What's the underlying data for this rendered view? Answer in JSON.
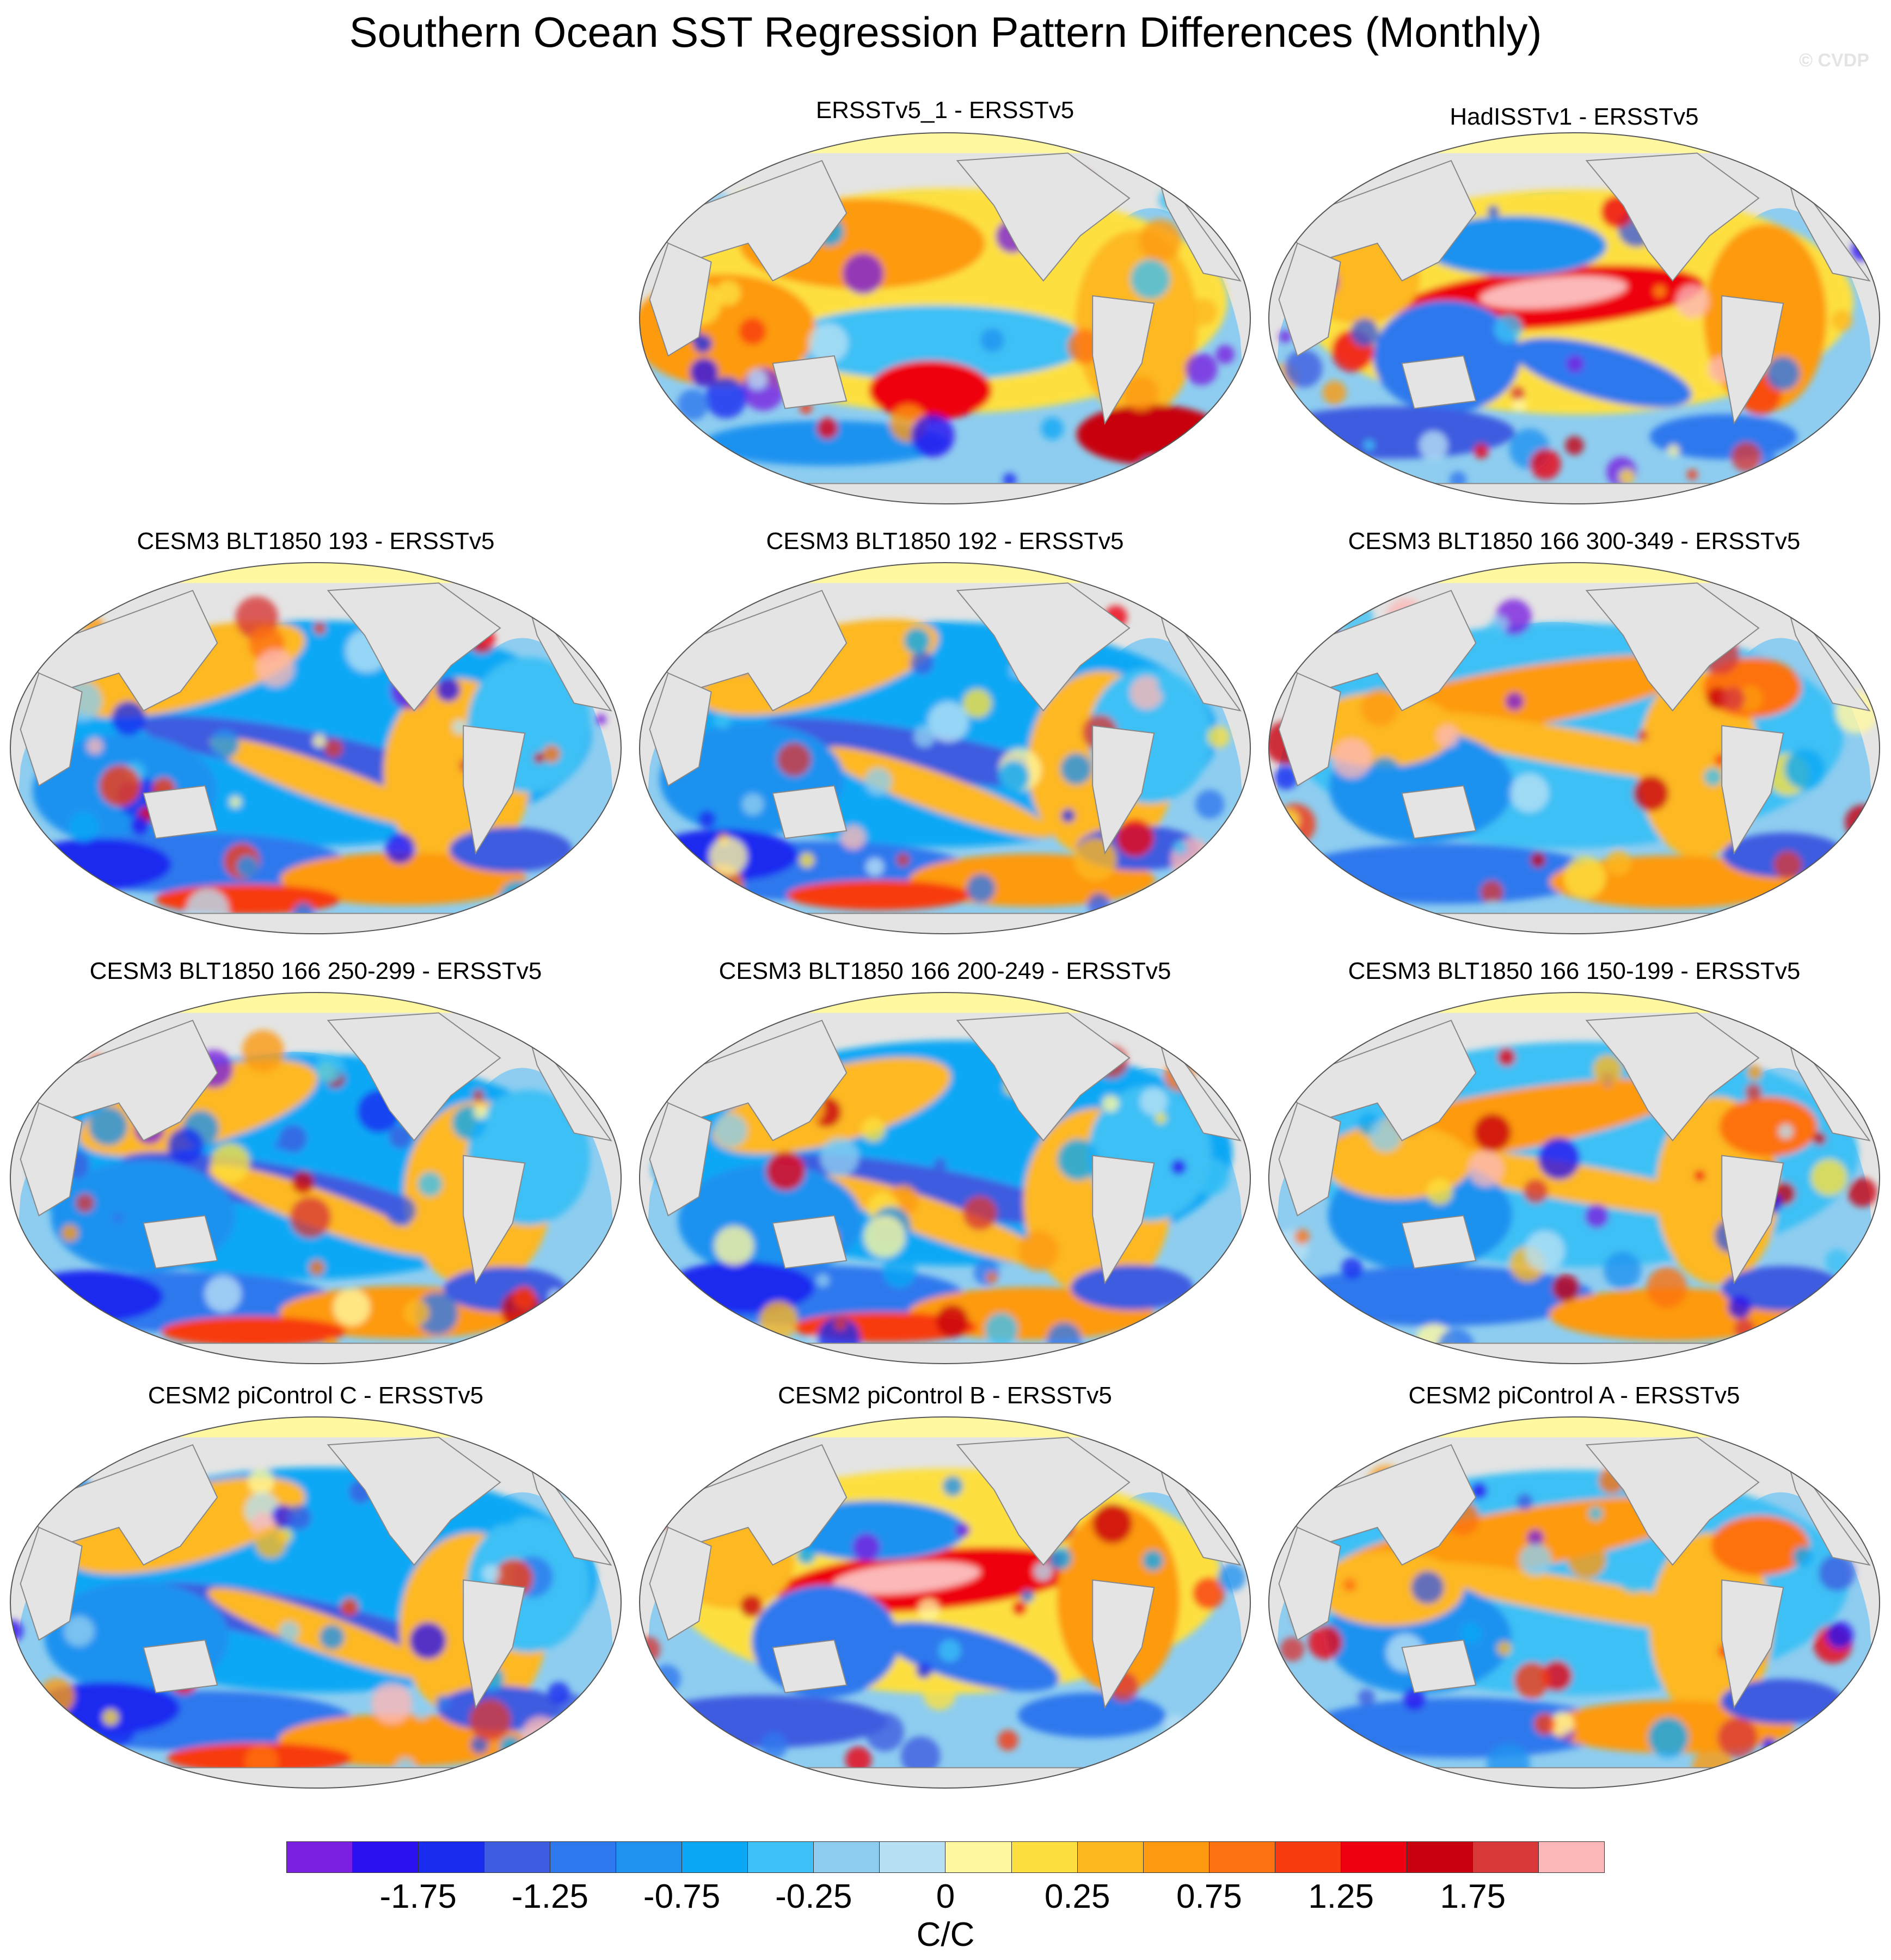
{
  "title": "Southern Ocean SST Regression Pattern Differences (Monthly)",
  "watermark": "© CVDP",
  "panels": [
    {
      "title": "ERSSTv5_1 - ERSSTv5",
      "pattern": "warm"
    },
    {
      "title": "HadISSTv1 - ERSSTv5",
      "pattern": "warm_tropics"
    },
    {
      "title": "CESM3 BLT1850 193 - ERSSTv5",
      "pattern": "cool"
    },
    {
      "title": "CESM3 BLT1850 192 - ERSSTv5",
      "pattern": "cool"
    },
    {
      "title": "CESM3 BLT1850 166 300-349 - ERSSTv5",
      "pattern": "mixed"
    },
    {
      "title": "CESM3 BLT1850 166 250-299 - ERSSTv5",
      "pattern": "cool"
    },
    {
      "title": "CESM3 BLT1850 166 200-249 - ERSSTv5",
      "pattern": "cool"
    },
    {
      "title": "CESM3 BLT1850 166 150-199 - ERSSTv5",
      "pattern": "mixed"
    },
    {
      "title": "CESM2 piControl C - ERSSTv5",
      "pattern": "cool"
    },
    {
      "title": "CESM2 piControl B - ERSSTv5",
      "pattern": "warm_tropics"
    },
    {
      "title": "CESM2 piControl A - ERSSTv5",
      "pattern": "mixed"
    }
  ],
  "colorbar": {
    "colors": [
      "#7b1fe0",
      "#2a10f0",
      "#1a2cf0",
      "#3d5ce0",
      "#2e78ee",
      "#1f92f0",
      "#0aa8f5",
      "#3cc0f5",
      "#8ecdf0",
      "#b8e0f5",
      "#fff8a0",
      "#fde040",
      "#fdb820",
      "#fd9a10",
      "#fd7210",
      "#f83a10",
      "#ee0010",
      "#c80010",
      "#d83838",
      "#fcb8b8"
    ],
    "labels": [
      "-1.75",
      "-1.25",
      "-0.75",
      "-0.25",
      "0",
      "0.25",
      "0.75",
      "1.25",
      "1.75"
    ],
    "units": "C/C"
  }
}
